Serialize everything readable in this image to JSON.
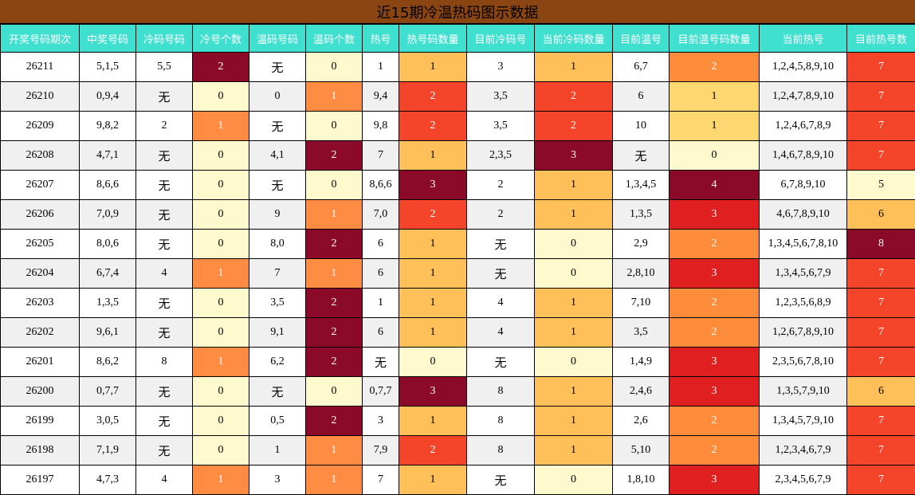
{
  "title": "近15期冷温热码图示数据",
  "none_text": "无",
  "palette": {
    "header_bg": "#40e0d0",
    "title_bg": "#8b4513",
    "count_0": "#fffacd",
    "count_1_cold": "#ff8c42",
    "count_1_hot": "#ffc05a",
    "count_1_curcold": "#ffc05a",
    "count_1_curwarm": "#ffd770",
    "count_2": "#f4442a",
    "count_2_curwarm": "#ff8c3a",
    "count_3": "#8b0a2a",
    "count_3_curwarm": "#e02020",
    "count_4": "#8b0a2a",
    "hot_5": "#fffacd",
    "hot_6": "#ffc05a",
    "hot_7": "#f4442a",
    "hot_8": "#8b0a2a"
  },
  "chart_data": {
    "type": "table",
    "title": "近15期冷温热码图示数据",
    "columns": [
      "开奖号码期次",
      "中奖号码",
      "冷码号码",
      "冷号个数",
      "温码号码",
      "温码个数",
      "热号",
      "热号码数量",
      "目前冷码号",
      "当前冷码数量",
      "目前温号",
      "目前温号码数量",
      "当前热号",
      "目前热号数"
    ],
    "rows": [
      [
        "26211",
        "5,1,5",
        "5,5",
        "2",
        "无",
        "0",
        "1",
        "1",
        "3",
        "1",
        "6,7",
        "2",
        "1,2,4,5,8,9,10",
        "7"
      ],
      [
        "26210",
        "0,9,4",
        "无",
        "0",
        "0",
        "1",
        "9,4",
        "2",
        "3,5",
        "2",
        "6",
        "1",
        "1,2,4,7,8,9,10",
        "7"
      ],
      [
        "26209",
        "9,8,2",
        "2",
        "1",
        "无",
        "0",
        "9,8",
        "2",
        "3,5",
        "2",
        "10",
        "1",
        "1,2,4,6,7,8,9",
        "7"
      ],
      [
        "26208",
        "4,7,1",
        "无",
        "0",
        "4,1",
        "2",
        "7",
        "1",
        "2,3,5",
        "3",
        "无",
        "0",
        "1,4,6,7,8,9,10",
        "7"
      ],
      [
        "26207",
        "8,6,6",
        "无",
        "0",
        "无",
        "0",
        "8,6,6",
        "3",
        "2",
        "1",
        "1,3,4,5",
        "4",
        "6,7,8,9,10",
        "5"
      ],
      [
        "26206",
        "7,0,9",
        "无",
        "0",
        "9",
        "1",
        "7,0",
        "2",
        "2",
        "1",
        "1,3,5",
        "3",
        "4,6,7,8,9,10",
        "6"
      ],
      [
        "26205",
        "8,0,6",
        "无",
        "0",
        "8,0",
        "2",
        "6",
        "1",
        "无",
        "0",
        "2,9",
        "2",
        "1,3,4,5,6,7,8,10",
        "8"
      ],
      [
        "26204",
        "6,7,4",
        "4",
        "1",
        "7",
        "1",
        "6",
        "1",
        "无",
        "0",
        "2,8,10",
        "3",
        "1,3,4,5,6,7,9",
        "7"
      ],
      [
        "26203",
        "1,3,5",
        "无",
        "0",
        "3,5",
        "2",
        "1",
        "1",
        "4",
        "1",
        "7,10",
        "2",
        "1,2,3,5,6,8,9",
        "7"
      ],
      [
        "26202",
        "9,6,1",
        "无",
        "0",
        "9,1",
        "2",
        "6",
        "1",
        "4",
        "1",
        "3,5",
        "2",
        "1,2,6,7,8,9,10",
        "7"
      ],
      [
        "26201",
        "8,6,2",
        "8",
        "1",
        "6,2",
        "2",
        "无",
        "0",
        "无",
        "0",
        "1,4,9",
        "3",
        "2,3,5,6,7,8,10",
        "7"
      ],
      [
        "26200",
        "0,7,7",
        "无",
        "0",
        "无",
        "0",
        "0,7,7",
        "3",
        "8",
        "1",
        "2,4,6",
        "3",
        "1,3,5,7,9,10",
        "6"
      ],
      [
        "26199",
        "3,0,5",
        "无",
        "0",
        "0,5",
        "2",
        "3",
        "1",
        "8",
        "1",
        "2,6",
        "2",
        "1,3,4,5,7,9,10",
        "7"
      ],
      [
        "26198",
        "7,1,9",
        "无",
        "0",
        "1",
        "1",
        "7,9",
        "2",
        "8",
        "1",
        "5,10",
        "2",
        "1,2,3,4,6,7,9",
        "7"
      ],
      [
        "26197",
        "4,7,3",
        "4",
        "1",
        "3",
        "1",
        "7",
        "1",
        "无",
        "0",
        "1,8,10",
        "3",
        "2,3,4,5,6,7,9",
        "7"
      ]
    ]
  }
}
